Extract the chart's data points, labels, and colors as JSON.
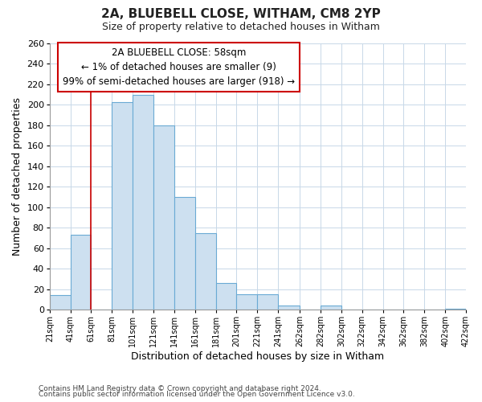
{
  "title": "2A, BLUEBELL CLOSE, WITHAM, CM8 2YP",
  "subtitle": "Size of property relative to detached houses in Witham",
  "xlabel": "Distribution of detached houses by size in Witham",
  "ylabel": "Number of detached properties",
  "bin_labels": [
    "21sqm",
    "41sqm",
    "61sqm",
    "81sqm",
    "101sqm",
    "121sqm",
    "141sqm",
    "161sqm",
    "181sqm",
    "201sqm",
    "221sqm",
    "241sqm",
    "262sqm",
    "282sqm",
    "302sqm",
    "322sqm",
    "342sqm",
    "362sqm",
    "382sqm",
    "402sqm",
    "422sqm"
  ],
  "bar_heights": [
    14,
    73,
    0,
    203,
    210,
    180,
    110,
    75,
    26,
    15,
    15,
    4,
    0,
    4,
    0,
    0,
    0,
    0,
    0,
    1
  ],
  "bin_edges": [
    21,
    41,
    61,
    81,
    101,
    121,
    141,
    161,
    181,
    201,
    221,
    241,
    262,
    282,
    302,
    322,
    342,
    362,
    382,
    402,
    422
  ],
  "bar_color": "#cde0f0",
  "bar_edgecolor": "#6aaad4",
  "redline_x": 61,
  "ylim": [
    0,
    260
  ],
  "yticks": [
    0,
    20,
    40,
    60,
    80,
    100,
    120,
    140,
    160,
    180,
    200,
    220,
    240,
    260
  ],
  "annotation_title": "2A BLUEBELL CLOSE: 58sqm",
  "annotation_line1": "← 1% of detached houses are smaller (9)",
  "annotation_line2": "99% of semi-detached houses are larger (918) →",
  "annotation_box_color": "#ffffff",
  "annotation_box_edgecolor": "#cc0000",
  "footer1": "Contains HM Land Registry data © Crown copyright and database right 2024.",
  "footer2": "Contains public sector information licensed under the Open Government Licence v3.0.",
  "background_color": "#ffffff",
  "grid_color": "#c8d8e8"
}
